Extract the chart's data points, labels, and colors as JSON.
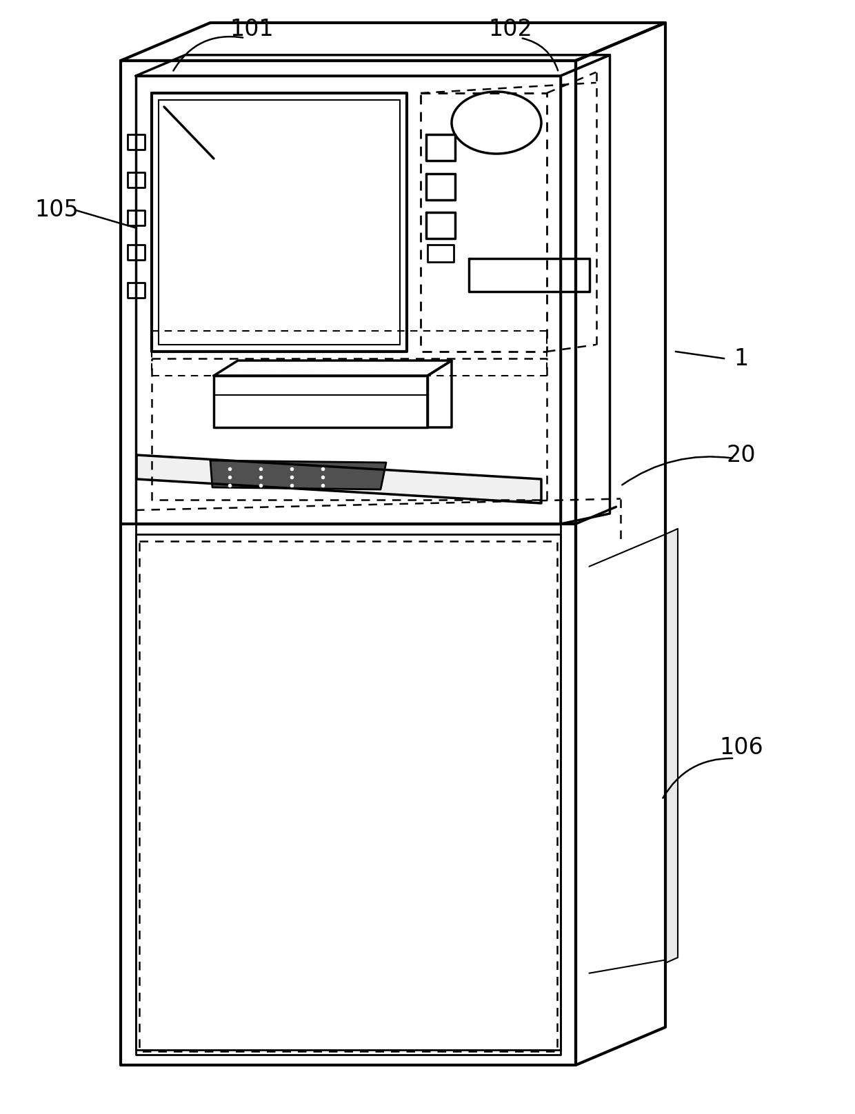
{
  "bg_color": "#ffffff",
  "line_color": "#000000",
  "label_101": "101",
  "label_102": "102",
  "label_105": "105",
  "label_1": "1",
  "label_20": "20",
  "label_106": "106",
  "fig_width": 12.4,
  "fig_height": 16.16,
  "dpi": 100
}
